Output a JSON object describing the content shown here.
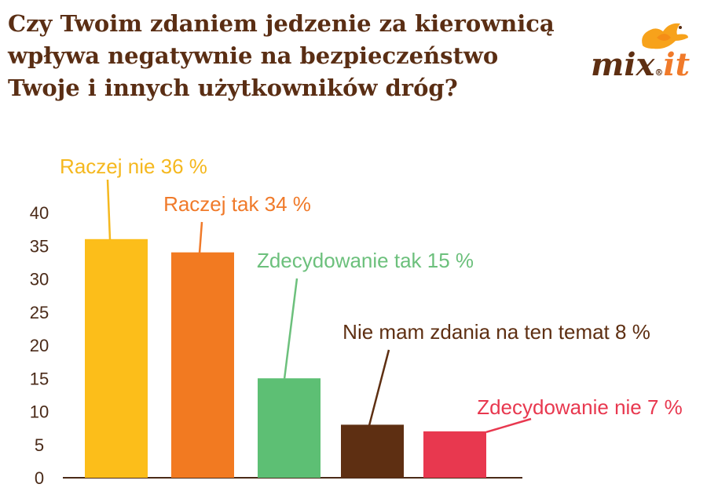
{
  "title_lines": [
    "Czy Twoim zdaniem jedzenie za kierownicą",
    "wpływa negatywnie na bezpieczeństwo",
    "Twoje i innych użytkowników dróg?"
  ],
  "logo": {
    "text_main": "mix",
    "text_accent": "it",
    "registered": "®",
    "icon": "bird-icon"
  },
  "chart_data": {
    "type": "bar",
    "title": "Czy Twoim zdaniem jedzenie za kierownicą wpływa negatywnie na bezpieczeństwo Twoje i innych użytkowników dróg?",
    "xlabel": "",
    "ylabel": "",
    "ylim": [
      0,
      40
    ],
    "yticks": [
      "0",
      "5",
      "10",
      "15",
      "20",
      "25",
      "30",
      "35",
      "40"
    ],
    "grid": false,
    "categories": [
      "Raczej nie",
      "Raczej tak",
      "Zdecydowanie tak",
      "Nie mam zdania na ten temat",
      "Zdecydowanie nie"
    ],
    "values": [
      36,
      34,
      15,
      8,
      7
    ],
    "data_labels": [
      "Raczej nie 36 %",
      "Raczej tak 34 %",
      "Zdecydowanie tak 15 %",
      "Nie mam zdania na ten temat 8 %",
      "Zdecydowanie nie 7 %"
    ],
    "colors": [
      "#fcbe1a",
      "#f27a21",
      "#5dbf74",
      "#5e2f12",
      "#e8384f"
    ],
    "colors_label": [
      "#f5b81f",
      "#f07a2a",
      "#6cc07c",
      "#5e2f12",
      "#e8384f"
    ],
    "axis_color": "#4a2a18"
  }
}
